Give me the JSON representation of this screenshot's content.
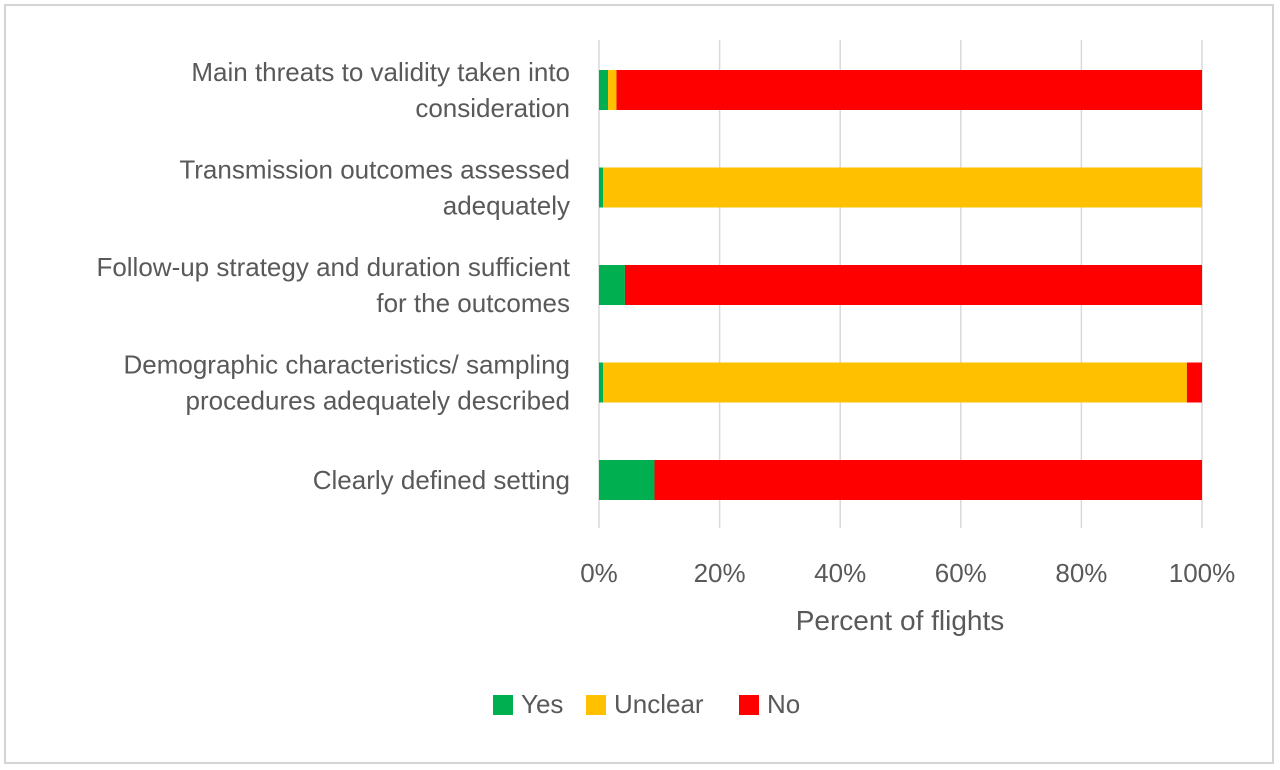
{
  "chart_data": {
    "type": "bar",
    "orientation": "horizontal",
    "stacked": true,
    "categories": [
      [
        "Main threats to validity taken into",
        "consideration"
      ],
      [
        "Transmission outcomes assessed",
        "adequately"
      ],
      [
        "Follow-up strategy and duration sufficient",
        "for the outcomes"
      ],
      [
        "Demographic characteristics/ sampling",
        "procedures adequately described"
      ],
      [
        "Clearly defined setting"
      ]
    ],
    "series": [
      {
        "name": "Yes",
        "color": "#00b050",
        "values": [
          1.5,
          0.7,
          4.3,
          0.7,
          9.2
        ]
      },
      {
        "name": "Unclear",
        "color": "#ffc000",
        "values": [
          1.4,
          99.3,
          0,
          96.8,
          0
        ]
      },
      {
        "name": "No",
        "color": "#ff0000",
        "values": [
          97.1,
          0,
          95.7,
          2.5,
          90.8
        ]
      }
    ],
    "xlabel": "Percent of flights",
    "xlim": [
      0,
      100
    ],
    "xticks": [
      "0%",
      "20%",
      "40%",
      "60%",
      "80%",
      "100%"
    ],
    "grid": true,
    "legend": "bottom"
  }
}
